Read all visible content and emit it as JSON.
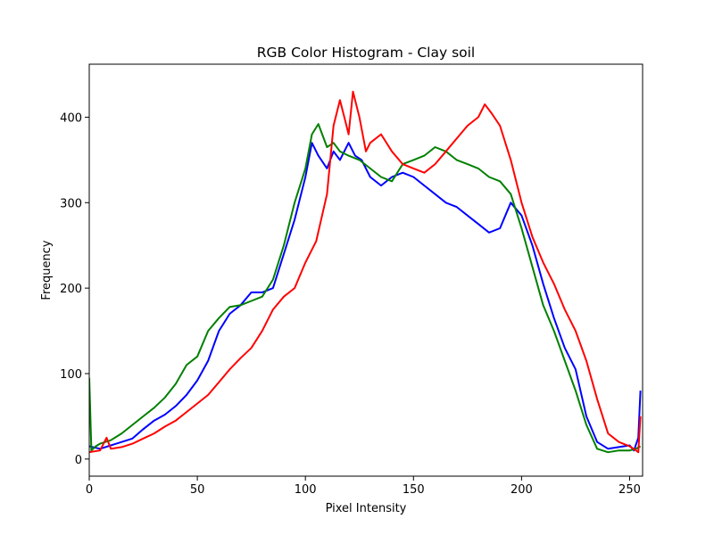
{
  "chart_data": {
    "type": "line",
    "title": "RGB Color Histogram - Clay soil",
    "xlabel": "Pixel Intensity",
    "ylabel": "Frequency",
    "xlim": [
      0,
      256
    ],
    "ylim": [
      -20,
      462
    ],
    "xticks": [
      0,
      50,
      100,
      150,
      200,
      250
    ],
    "yticks": [
      0,
      100,
      200,
      300,
      400
    ],
    "grid": false,
    "legend": "none",
    "series": [
      {
        "color": "#0000ff",
        "x": [
          0,
          5,
          10,
          15,
          20,
          25,
          30,
          35,
          40,
          45,
          50,
          55,
          60,
          65,
          70,
          75,
          80,
          85,
          90,
          95,
          100,
          103,
          106,
          110,
          113,
          116,
          120,
          123,
          126,
          130,
          135,
          140,
          145,
          150,
          155,
          160,
          165,
          170,
          175,
          180,
          185,
          190,
          195,
          200,
          205,
          210,
          215,
          220,
          225,
          230,
          235,
          240,
          245,
          250,
          252,
          254,
          255
        ],
        "values": [
          15,
          12,
          16,
          20,
          24,
          35,
          45,
          52,
          62,
          75,
          92,
          115,
          150,
          170,
          180,
          195,
          195,
          200,
          240,
          280,
          330,
          370,
          355,
          340,
          360,
          350,
          370,
          355,
          350,
          330,
          320,
          330,
          335,
          330,
          320,
          310,
          300,
          295,
          285,
          275,
          265,
          270,
          300,
          285,
          250,
          205,
          165,
          130,
          105,
          50,
          20,
          12,
          14,
          16,
          10,
          25,
          80
        ]
      },
      {
        "color": "#008000",
        "x": [
          0,
          1,
          3,
          5,
          10,
          15,
          20,
          25,
          30,
          35,
          40,
          45,
          50,
          55,
          60,
          65,
          70,
          75,
          80,
          85,
          90,
          95,
          100,
          103,
          106,
          110,
          113,
          116,
          120,
          125,
          130,
          135,
          140,
          145,
          150,
          155,
          160,
          165,
          170,
          175,
          180,
          185,
          190,
          195,
          200,
          205,
          210,
          215,
          220,
          225,
          230,
          235,
          240,
          245,
          250,
          253,
          255
        ],
        "values": [
          95,
          10,
          15,
          18,
          22,
          30,
          40,
          50,
          60,
          72,
          88,
          110,
          120,
          150,
          165,
          178,
          180,
          185,
          190,
          210,
          250,
          300,
          340,
          380,
          392,
          365,
          370,
          360,
          355,
          350,
          340,
          330,
          325,
          345,
          350,
          355,
          365,
          360,
          350,
          345,
          340,
          330,
          325,
          310,
          270,
          225,
          180,
          150,
          115,
          80,
          40,
          12,
          8,
          10,
          10,
          12,
          15
        ]
      },
      {
        "color": "#ff0000",
        "x": [
          0,
          5,
          8,
          10,
          15,
          20,
          25,
          30,
          35,
          40,
          45,
          50,
          55,
          60,
          65,
          70,
          75,
          80,
          85,
          90,
          95,
          100,
          105,
          110,
          113,
          116,
          118,
          120,
          122,
          125,
          128,
          130,
          135,
          140,
          145,
          150,
          155,
          160,
          165,
          170,
          175,
          180,
          183,
          186,
          190,
          195,
          200,
          205,
          210,
          215,
          220,
          225,
          230,
          235,
          240,
          245,
          250,
          253,
          254,
          255
        ],
        "values": [
          8,
          10,
          25,
          12,
          14,
          18,
          24,
          30,
          38,
          45,
          55,
          65,
          75,
          90,
          105,
          118,
          130,
          150,
          175,
          190,
          200,
          230,
          255,
          310,
          390,
          420,
          400,
          380,
          430,
          400,
          360,
          370,
          380,
          360,
          345,
          340,
          335,
          345,
          360,
          375,
          390,
          400,
          415,
          405,
          390,
          350,
          300,
          260,
          230,
          205,
          175,
          150,
          115,
          70,
          30,
          20,
          15,
          10,
          8,
          50
        ]
      }
    ]
  }
}
